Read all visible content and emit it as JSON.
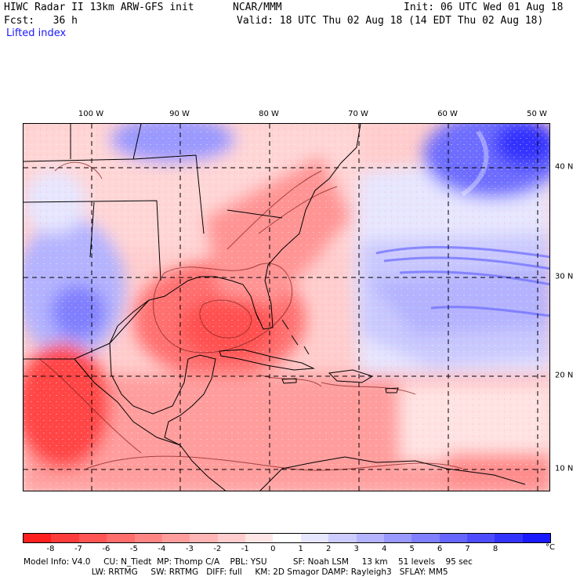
{
  "header": {
    "title_left": "HIWC Radar II 13km ARW-GFS init",
    "center": "NCAR/MMM",
    "init": "Init: 06 UTC Wed 01 Aug 18",
    "fcst": "Fcst:   36 h",
    "valid": "Valid: 18 UTC Thu 02 Aug 18 (14 EDT Thu 02 Aug 18)",
    "field": "Lifted index"
  },
  "map": {
    "lon_labels": [
      "100 W",
      "90 W",
      "80 W",
      "70 W",
      "60 W",
      "50 W"
    ],
    "lat_labels": [
      "40 N",
      "30 N",
      "20 N",
      "10 N"
    ]
  },
  "colorbar": {
    "ticks": [
      "-8",
      "-7",
      "-6",
      "-5",
      "-4",
      "-3",
      "-2",
      "-1",
      "0",
      "1",
      "2",
      "3",
      "4",
      "5",
      "6",
      "7",
      "8"
    ],
    "unit": "°C",
    "colors": [
      "#ff1f1f",
      "#ff3b3b",
      "#ff5555",
      "#ff6d6d",
      "#ff8585",
      "#ff9d9d",
      "#ffb5b5",
      "#ffcdcd",
      "#ffe6e6",
      "#ffffff",
      "#e6e6ff",
      "#ccccff",
      "#b3b3ff",
      "#9999ff",
      "#7f7fff",
      "#6666ff",
      "#4d4dff",
      "#3333ff",
      "#1a1aff"
    ]
  },
  "footer": {
    "line1": "Model Info: V4.0     CU: N_Tiedt  MP: Thomp C/A    PBL: YSU          SF: Noah LSM     13 km    51 levels    95 sec",
    "line2": "                          LW: RRTMG     SW: RRTMG   DIFF: full     KM: 2D Smagor DAMP: Rayleigh3   SFLAY: MM5"
  }
}
